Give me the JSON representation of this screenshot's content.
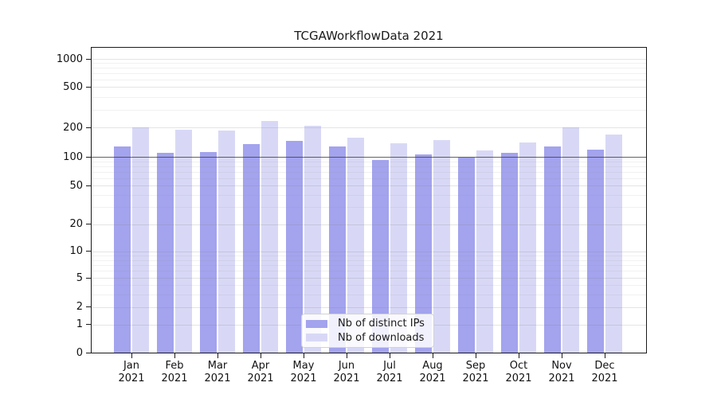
{
  "chart_data": {
    "type": "bar",
    "title": "TCGAWorkflowData 2021",
    "categories": [
      "Jan 2021",
      "Feb 2021",
      "Mar 2021",
      "Apr 2021",
      "May 2021",
      "Jun 2021",
      "Jul 2021",
      "Aug 2021",
      "Sep 2021",
      "Oct 2021",
      "Nov 2021",
      "Dec 2021"
    ],
    "series": [
      {
        "name": "Nb of distinct IPs",
        "color": "#a3a3ee",
        "values": [
          128,
          111,
          113,
          136,
          147,
          129,
          94,
          107,
          99,
          110,
          127,
          119
        ]
      },
      {
        "name": "Nb of downloads",
        "color": "#d8d8f6",
        "values": [
          200,
          190,
          185,
          230,
          209,
          157,
          137,
          149,
          116,
          141,
          200,
          169
        ]
      }
    ],
    "yscale": "symlog",
    "yticks": [
      0,
      1,
      2,
      5,
      10,
      20,
      50,
      100,
      200,
      500,
      1000
    ],
    "ylim": [
      0,
      1300
    ],
    "grid": true,
    "highlight_gridline": 100,
    "legend_position": "lower center"
  },
  "colors": {
    "background": "#ffffff",
    "axis": "#1a1a1a",
    "grid_major": "rgba(130,130,130,0.22)",
    "grid_minor": "rgba(145,145,145,0.13)",
    "hundred_line": "rgba(60,60,60,0.8)"
  }
}
